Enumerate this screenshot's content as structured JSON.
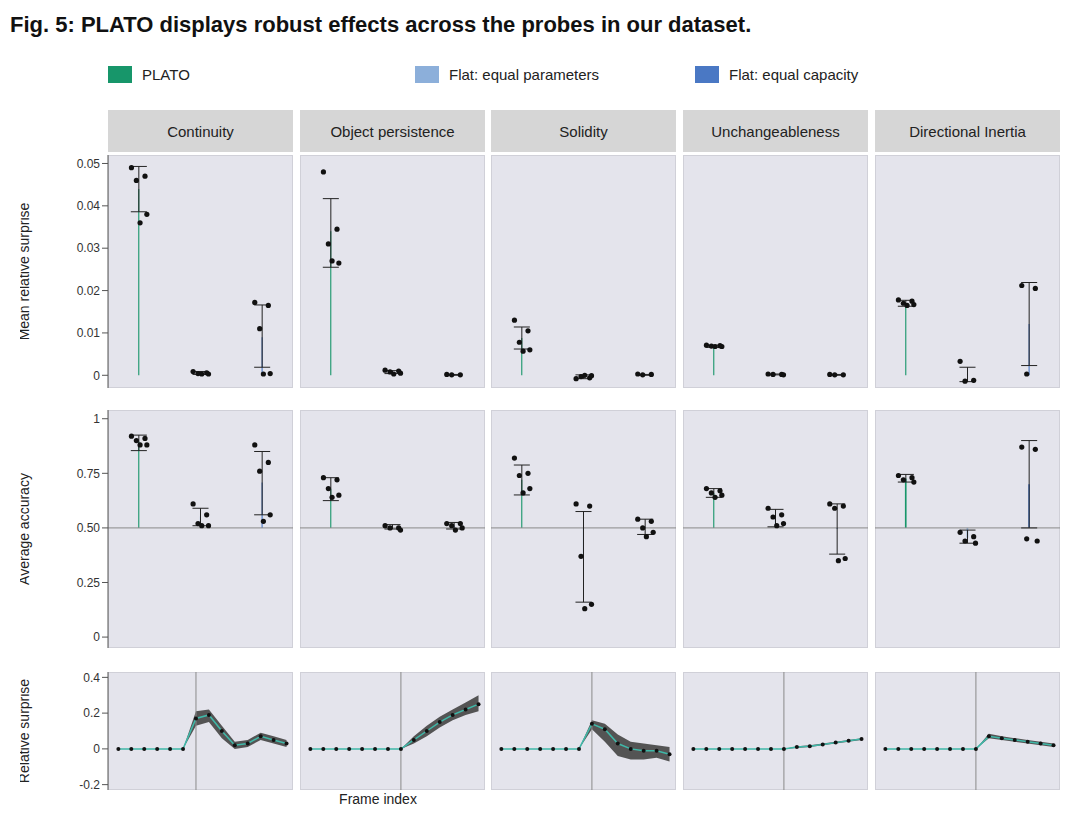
{
  "title": "Fig. 5: PLATO displays robust effects across the probes in our dataset.",
  "chart_data": [
    {
      "type": "bar",
      "ylabel": "Mean relative surprise",
      "categories": [
        "Continuity",
        "Object persistence",
        "Solidity",
        "Unchangeableness",
        "Directional Inertia"
      ],
      "ylim": [
        -0.003,
        0.052
      ],
      "yticks": [
        0,
        0.01,
        0.02,
        0.03,
        0.04,
        0.05
      ],
      "tick_labels": "y",
      "legend": "top",
      "series": [
        {
          "name": "PLATO",
          "color": "#17966a",
          "values": [
            0.044,
            0.034,
            0.0088,
            0.0069,
            0.0169
          ],
          "error_range": [
            [
              0.0386,
              0.0493
            ],
            [
              0.0255,
              0.0417
            ],
            [
              0.0062,
              0.0114
            ],
            [
              0.0066,
              0.0071
            ],
            [
              0.0163,
              0.0177
            ]
          ],
          "points": [
            [
              0.049,
              0.047,
              0.046,
              0.038,
              0.036
            ],
            [
              0.048,
              0.0345,
              0.031,
              0.0265,
              0.027
            ],
            [
              0.013,
              0.0105,
              0.0078,
              0.006,
              0.0057
            ],
            [
              0.0071,
              0.007,
              0.0069,
              0.0068,
              0.0068
            ],
            [
              0.0178,
              0.0175,
              0.017,
              0.0167,
              0.0165
            ]
          ]
        },
        {
          "name": "Flat: equal parameters",
          "color": "#8cafda",
          "values": [
            0.0005,
            0.0007,
            -0.0003,
            0.0002,
            0.0002
          ],
          "error_range": [
            [
              0.0002,
              0.0009
            ],
            [
              0.0004,
              0.0011
            ],
            [
              -0.0008,
              0.0001
            ],
            [
              0.0001,
              0.0003
            ],
            [
              -0.0015,
              0.0019
            ]
          ],
          "points": [
            [
              0.0009,
              0.0006,
              0.0004,
              0.0003,
              0.0003
            ],
            [
              0.0012,
              0.001,
              0.0008,
              0.0005,
              0.0003
            ],
            [
              -0.0008,
              -0.0006,
              -0.0003,
              -0.0001,
              0.0
            ],
            [
              0.0003,
              0.0002,
              0.0002,
              0.0001
            ],
            [
              0.0033,
              -0.0012,
              -0.0014
            ]
          ]
        },
        {
          "name": "Flat: equal capacity",
          "color": "#4a78c4",
          "values": [
            0.009,
            0.0001,
            0.0001,
            0.0001,
            0.0121
          ],
          "error_range": [
            [
              0.0019,
              0.0166
            ],
            [
              0.0,
              0.0002
            ],
            [
              0.0,
              0.0002
            ],
            [
              0.0,
              0.0002
            ],
            [
              0.0023,
              0.0219
            ]
          ],
          "points": [
            [
              0.0172,
              0.0165,
              0.011,
              0.0004,
              0.0003
            ],
            [
              0.0002,
              0.0001,
              0.0001
            ],
            [
              0.0003,
              0.0002,
              0.0001
            ],
            [
              0.0002,
              0.0001,
              0.0001
            ],
            [
              0.0212,
              0.0205,
              0.0003
            ]
          ]
        }
      ]
    },
    {
      "type": "bar",
      "ylabel": "Average accuracy",
      "ylim": [
        -0.05,
        1.04
      ],
      "yticks": [
        0,
        0.25,
        {
          "value": 0.5,
          "label": "0.50"
        },
        0.75,
        1
      ],
      "tick_labels": "y",
      "baseline": 0.5,
      "series": [
        {
          "color": "#17966a",
          "values": [
            0.896,
            0.679,
            0.72,
            0.66,
            0.726
          ],
          "error_range": [
            [
              0.854,
              0.925
            ],
            [
              0.625,
              0.73
            ],
            [
              0.651,
              0.788
            ],
            [
              0.64,
              0.68
            ],
            [
              0.71,
              0.745
            ]
          ],
          "points": [
            [
              0.92,
              0.91,
              0.9,
              0.88,
              0.88
            ],
            [
              0.73,
              0.72,
              0.68,
              0.65,
              0.64
            ],
            [
              0.82,
              0.75,
              0.74,
              0.68,
              0.66
            ],
            [
              0.68,
              0.67,
              0.66,
              0.65,
              0.64
            ],
            [
              0.74,
              0.73,
              0.72,
              0.71
            ]
          ]
        },
        {
          "color": "#8cafda",
          "values": [
            0.552,
            0.505,
            0.365,
            0.545,
            0.455
          ],
          "error_range": [
            [
              0.51,
              0.59
            ],
            [
              0.495,
              0.515
            ],
            [
              0.16,
              0.575
            ],
            [
              0.505,
              0.585
            ],
            [
              0.43,
              0.49
            ]
          ],
          "points": [
            [
              0.61,
              0.56,
              0.52,
              0.51,
              0.51
            ],
            [
              0.51,
              0.5,
              0.5,
              0.49
            ],
            [
              0.61,
              0.6,
              0.37,
              0.15,
              0.13
            ],
            [
              0.59,
              0.56,
              0.55,
              0.52,
              0.51
            ],
            [
              0.48,
              0.46,
              0.44,
              0.43
            ]
          ]
        },
        {
          "color": "#4a78c4",
          "values": [
            0.708,
            0.51,
            0.505,
            0.495,
            0.7
          ],
          "error_range": [
            [
              0.56,
              0.85
            ],
            [
              0.495,
              0.525
            ],
            [
              0.47,
              0.54
            ],
            [
              0.38,
              0.61
            ],
            [
              0.5,
              0.9
            ]
          ],
          "points": [
            [
              0.88,
              0.8,
              0.76,
              0.56,
              0.53
            ],
            [
              0.52,
              0.52,
              0.51,
              0.5,
              0.49
            ],
            [
              0.54,
              0.53,
              0.5,
              0.48,
              0.46
            ],
            [
              0.61,
              0.6,
              0.59,
              0.36,
              0.35
            ],
            [
              0.87,
              0.86,
              0.45,
              0.44
            ]
          ]
        }
      ]
    },
    {
      "type": "line",
      "ylabel": "Relative surprise",
      "xlabel": "Frame index",
      "x": [
        0,
        1,
        2,
        3,
        4,
        5,
        6,
        7,
        8,
        9,
        10,
        11,
        12,
        13
      ],
      "xlim": [
        -0.8,
        13.5
      ],
      "ylim": [
        -0.23,
        0.43
      ],
      "yticks": [
        -0.2,
        0,
        0.2,
        0.4
      ],
      "tick_labels": "y",
      "marker": "circle",
      "series": [
        {
          "color": "#3fb8a8",
          "event_frame": 6,
          "values": [
            0,
            0,
            0,
            0,
            0,
            0,
            0.17,
            0.19,
            0.1,
            0.02,
            0.03,
            0.07,
            0.05,
            0.03
          ],
          "band": [
            [
              0,
              0
            ],
            [
              0,
              0
            ],
            [
              0,
              0
            ],
            [
              0,
              0
            ],
            [
              0,
              0
            ],
            [
              0,
              0
            ],
            [
              0.13,
              0.21
            ],
            [
              0.15,
              0.22
            ],
            [
              0.06,
              0.13
            ],
            [
              0,
              0.04
            ],
            [
              0.01,
              0.05
            ],
            [
              0.05,
              0.09
            ],
            [
              0.03,
              0.07
            ],
            [
              0.01,
              0.05
            ]
          ]
        },
        {
          "color": "#3fb8a8",
          "event_frame": 7,
          "values": [
            0,
            0,
            0,
            0,
            0,
            0,
            0,
            0,
            0.05,
            0.1,
            0.15,
            0.19,
            0.22,
            0.25
          ],
          "band": [
            [
              0,
              0
            ],
            [
              0,
              0
            ],
            [
              0,
              0
            ],
            [
              0,
              0
            ],
            [
              0,
              0
            ],
            [
              0,
              0
            ],
            [
              0,
              0
            ],
            [
              0,
              0
            ],
            [
              0.03,
              0.07
            ],
            [
              0.07,
              0.13
            ],
            [
              0.12,
              0.18
            ],
            [
              0.16,
              0.22
            ],
            [
              0.19,
              0.26
            ],
            [
              0.21,
              0.3
            ]
          ]
        },
        {
          "color": "#3fb8a8",
          "event_frame": 7,
          "values": [
            0,
            0,
            0,
            0,
            0,
            0,
            0,
            0.14,
            0.11,
            0.03,
            0,
            -0.01,
            -0.01,
            -0.03
          ],
          "band": [
            [
              0,
              0
            ],
            [
              0,
              0
            ],
            [
              0,
              0
            ],
            [
              0,
              0
            ],
            [
              0,
              0
            ],
            [
              0,
              0
            ],
            [
              0,
              0
            ],
            [
              0.11,
              0.16
            ],
            [
              0.04,
              0.14
            ],
            [
              -0.04,
              0.08
            ],
            [
              -0.06,
              0.04
            ],
            [
              -0.06,
              0.03
            ],
            [
              -0.05,
              0.02
            ],
            [
              -0.07,
              0.01
            ]
          ]
        },
        {
          "color": "#3fb8a8",
          "event_frame": 7,
          "values": [
            0,
            0,
            0,
            0,
            0,
            0,
            0,
            0,
            0.01,
            0.015,
            0.025,
            0.035,
            0.045,
            0.055
          ],
          "band": [
            [
              0,
              0
            ],
            [
              0,
              0
            ],
            [
              0,
              0
            ],
            [
              0,
              0
            ],
            [
              0,
              0
            ],
            [
              0,
              0
            ],
            [
              0,
              0
            ],
            [
              0,
              0
            ],
            [
              0.005,
              0.015
            ],
            [
              0.01,
              0.02
            ],
            [
              0.02,
              0.03
            ],
            [
              0.03,
              0.04
            ],
            [
              0.04,
              0.05
            ],
            [
              0.05,
              0.06
            ]
          ]
        },
        {
          "color": "#3fb8a8",
          "event_frame": 7,
          "values": [
            0,
            0,
            0,
            0,
            0,
            0,
            0,
            0,
            0.07,
            0.06,
            0.05,
            0.04,
            0.03,
            0.02
          ],
          "band": [
            [
              0,
              0
            ],
            [
              0,
              0
            ],
            [
              0,
              0
            ],
            [
              0,
              0
            ],
            [
              0,
              0
            ],
            [
              0,
              0
            ],
            [
              0,
              0
            ],
            [
              0,
              0
            ],
            [
              0.06,
              0.085
            ],
            [
              0.05,
              0.07
            ],
            [
              0.04,
              0.06
            ],
            [
              0.03,
              0.05
            ],
            [
              0.02,
              0.04
            ],
            [
              0.01,
              0.03
            ]
          ]
        }
      ]
    }
  ]
}
